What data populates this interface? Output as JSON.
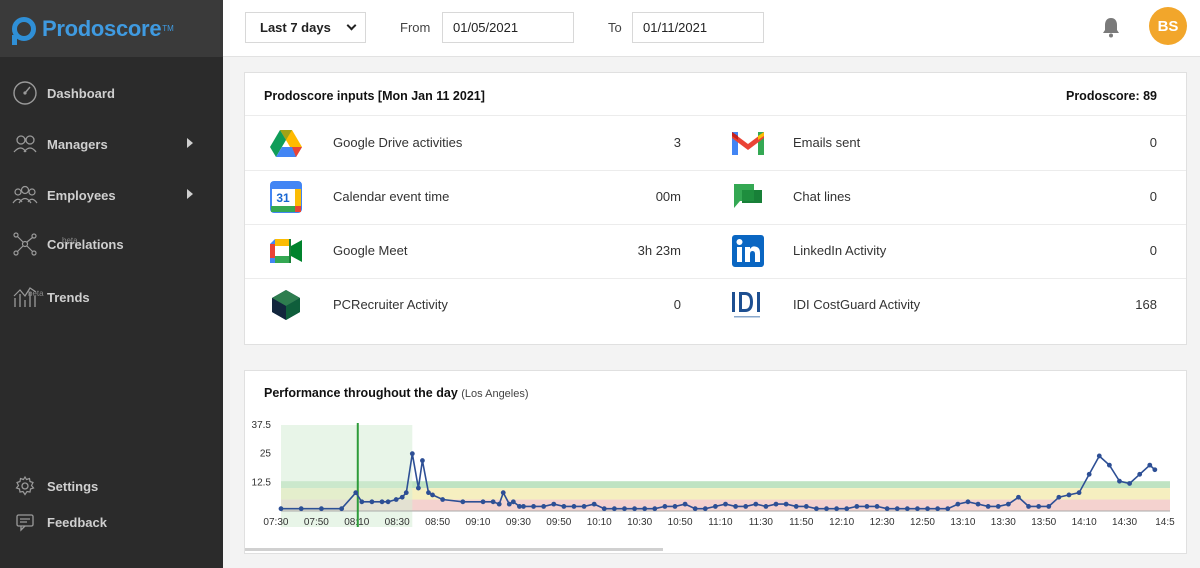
{
  "app": {
    "name": "Prodoscore",
    "tm": "TM"
  },
  "sidebar": {
    "items": [
      {
        "label": "Dashboard",
        "icon": "dashboard-icon",
        "beta": ""
      },
      {
        "label": "Managers",
        "icon": "managers-icon",
        "beta": ""
      },
      {
        "label": "Employees",
        "icon": "employees-icon",
        "beta": ""
      },
      {
        "label": "Correlations",
        "icon": "correlations-icon",
        "beta": "beta"
      },
      {
        "label": "Trends",
        "icon": "trends-icon",
        "beta": "beta"
      }
    ],
    "bottom": [
      {
        "label": "Settings",
        "icon": "gear-icon"
      },
      {
        "label": "Feedback",
        "icon": "feedback-icon"
      }
    ]
  },
  "topbar": {
    "range": "Last 7 days",
    "from_label": "From",
    "from_value": "01/05/2021",
    "to_label": "To",
    "to_value": "01/11/2021",
    "avatar_initials": "BS"
  },
  "inputs": {
    "title": "Prodoscore inputs [Mon Jan 11 2021]",
    "score": "Prodoscore: 89",
    "metrics": [
      {
        "label": "Google Drive activities",
        "value": "3",
        "icon": "google-drive-icon"
      },
      {
        "label": "Emails sent",
        "value": "0",
        "icon": "gmail-icon"
      },
      {
        "label": "Calendar event time",
        "value": "00m",
        "icon": "google-calendar-icon"
      },
      {
        "label": "Chat lines",
        "value": "0",
        "icon": "google-chat-icon"
      },
      {
        "label": "Google Meet",
        "value": "3h 23m",
        "icon": "google-meet-icon"
      },
      {
        "label": "LinkedIn Activity",
        "value": "0",
        "icon": "linkedin-icon"
      },
      {
        "label": "PCRecruiter Activity",
        "value": "0",
        "icon": "pcrecruiter-icon"
      },
      {
        "label": "IDI CostGuard Activity",
        "value": "168",
        "icon": "idi-costguard-icon"
      }
    ]
  },
  "chart": {
    "title": "Performance throughout the day",
    "subtitle": "(Los Angeles)"
  },
  "chart_data": {
    "type": "line",
    "title": "Performance throughout the day",
    "subtitle": "(Los Angeles)",
    "ylim": [
      0,
      37.5
    ],
    "yticks": [
      "37.5",
      "25",
      "12.5"
    ],
    "x_ticks": [
      "07:30",
      "07:50",
      "08:10",
      "08:30",
      "08:50",
      "09:10",
      "09:30",
      "09:50",
      "10:10",
      "10:30",
      "10:50",
      "11:10",
      "11:30",
      "11:50",
      "12:10",
      "12:30",
      "12:50",
      "13:10",
      "13:30",
      "13:50",
      "14:10",
      "14:30",
      "14:5"
    ],
    "x": [
      0,
      10,
      20,
      30,
      37,
      40,
      45,
      50,
      53,
      57,
      60,
      62,
      65,
      68,
      70,
      73,
      75,
      80,
      90,
      100,
      105,
      108,
      110,
      113,
      115,
      118,
      120,
      125,
      130,
      135,
      140,
      145,
      150,
      155,
      160,
      165,
      170,
      175,
      180,
      185,
      190,
      195,
      200,
      205,
      210,
      215,
      220,
      225,
      230,
      235,
      240,
      245,
      250,
      255,
      260,
      265,
      270,
      275,
      280,
      285,
      290,
      295,
      300,
      305,
      310,
      315,
      320,
      325,
      330,
      335,
      340,
      345,
      350,
      355,
      360,
      365,
      370,
      375,
      380,
      385,
      390,
      395,
      400,
      405,
      410,
      415,
      420,
      425,
      430,
      432.5
    ],
    "y": [
      1,
      1,
      1,
      1,
      8,
      4,
      4,
      4,
      4,
      5,
      6,
      8,
      25,
      10,
      22,
      8,
      7,
      5,
      4,
      4,
      4,
      3,
      8,
      3,
      4,
      2,
      2,
      2,
      2,
      3,
      2,
      2,
      2,
      3,
      1,
      1,
      1,
      1,
      1,
      1,
      2,
      2,
      3,
      1,
      1,
      2,
      3,
      2,
      2,
      3,
      2,
      3,
      3,
      2,
      2,
      1,
      1,
      1,
      1,
      2,
      2,
      2,
      1,
      1,
      1,
      1,
      1,
      1,
      1,
      3,
      4,
      3,
      2,
      2,
      3,
      6,
      2,
      2,
      2,
      6,
      7,
      8,
      16,
      24,
      20,
      13,
      12,
      16,
      20,
      18
    ],
    "grid": false,
    "legend": "none",
    "bands": [
      {
        "name": "high",
        "color": "#bfe3c2",
        "from": 10,
        "to": 13
      },
      {
        "name": "mid",
        "color": "#f6efc0",
        "from": 5,
        "to": 10
      },
      {
        "name": "low",
        "color": "#f4d2cf",
        "from": 0,
        "to": 5
      }
    ],
    "line_color": "#2d4f95",
    "marker_color": "#2d4f95"
  }
}
